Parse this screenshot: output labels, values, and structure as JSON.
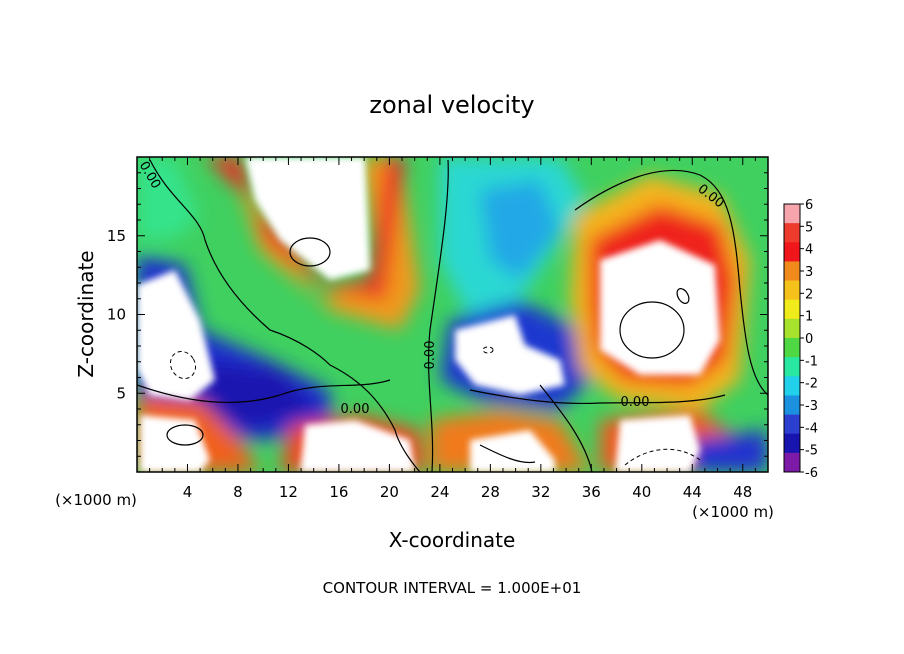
{
  "chart_data": {
    "type": "heatmap",
    "title": "zonal velocity",
    "xlabel": "X-coordinate",
    "ylabel": "Z-coordinate",
    "x_unit_label": "(×1000 m)",
    "x_unit_label_right": "(×1000 m)",
    "footnote": "CONTOUR INTERVAL = 1.000E+01",
    "xlim": [
      0,
      50
    ],
    "ylim": [
      0,
      20
    ],
    "x_ticks": [
      4,
      8,
      12,
      16,
      20,
      24,
      28,
      32,
      36,
      40,
      44,
      48
    ],
    "y_ticks": [
      5,
      10,
      15
    ],
    "colorbar": {
      "ticks": [
        6,
        5,
        4,
        3,
        2,
        1,
        0,
        -1,
        -2,
        -3,
        -4,
        -5,
        -6
      ],
      "colors": [
        "#f6a5ad",
        "#ee3b2e",
        "#f0161b",
        "#f08a1c",
        "#f5c21b",
        "#f0ec1c",
        "#a7e32d",
        "#4fd843",
        "#29e6a0",
        "#22d0ec",
        "#1c91e0",
        "#2c3fd0",
        "#1714b0",
        "#7e1aa8"
      ]
    },
    "contour_labels": [
      "0.00",
      "0.00",
      "0.00",
      "0.00",
      "0.00"
    ],
    "grid": false
  }
}
